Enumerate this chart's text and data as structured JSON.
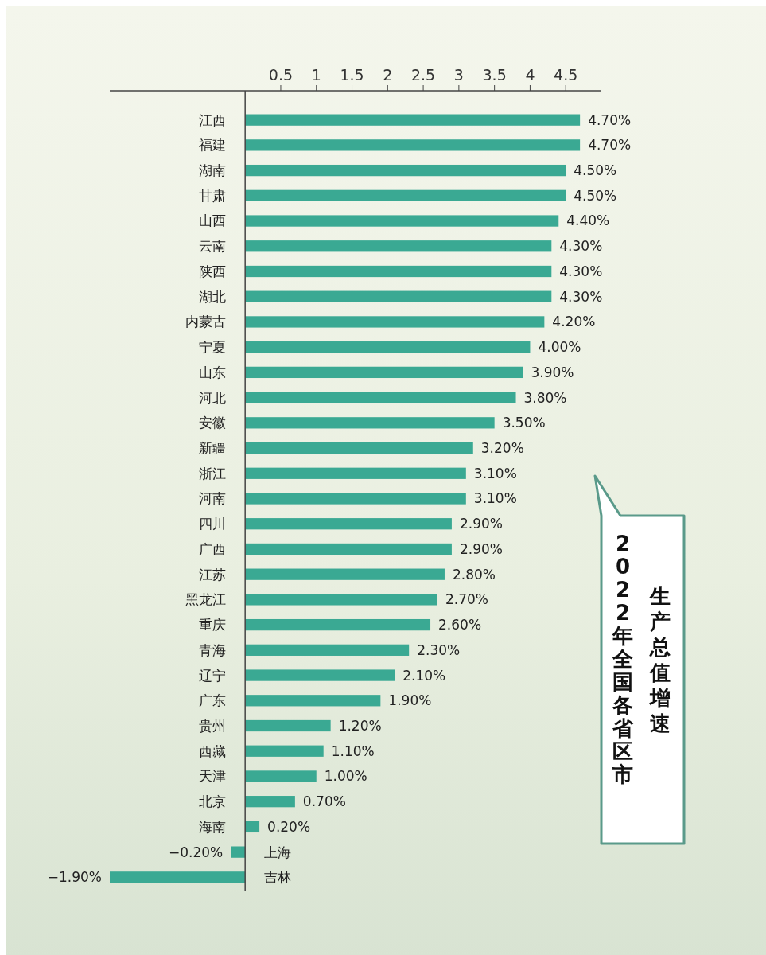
{
  "chart_data": {
    "type": "bar",
    "orientation": "horizontal",
    "title": "2022年全国各省区市",
    "subtitle": "生产总值增速",
    "categories": [
      "江西",
      "福建",
      "湖南",
      "甘肃",
      "山西",
      "云南",
      "陕西",
      "湖北",
      "内蒙古",
      "宁夏",
      "山东",
      "河北",
      "安徽",
      "新疆",
      "浙江",
      "河南",
      "四川",
      "广西",
      "江苏",
      "黑龙江",
      "重庆",
      "青海",
      "辽宁",
      "广东",
      "贵州",
      "西藏",
      "天津",
      "北京",
      "海南",
      "上海",
      "吉林"
    ],
    "values": [
      4.7,
      4.7,
      4.5,
      4.5,
      4.4,
      4.3,
      4.3,
      4.3,
      4.2,
      4.0,
      3.9,
      3.8,
      3.5,
      3.2,
      3.1,
      3.1,
      2.9,
      2.9,
      2.8,
      2.7,
      2.6,
      2.3,
      2.1,
      1.9,
      1.2,
      1.1,
      1.0,
      0.7,
      0.2,
      -0.2,
      -1.9
    ],
    "value_labels": [
      "4.70%",
      "4.70%",
      "4.50%",
      "4.50%",
      "4.40%",
      "4.30%",
      "4.30%",
      "4.30%",
      "4.20%",
      "4.00%",
      "3.90%",
      "3.80%",
      "3.50%",
      "3.20%",
      "3.10%",
      "3.10%",
      "2.90%",
      "2.90%",
      "2.80%",
      "2.70%",
      "2.60%",
      "2.30%",
      "2.10%",
      "1.90%",
      "1.20%",
      "1.10%",
      "1.00%",
      "0.70%",
      "0.20%",
      "−0.20%",
      "−1.90%"
    ],
    "color": "#3aa993",
    "xlim": [
      -1.9,
      5
    ],
    "xticks": [
      0.5,
      1,
      1.5,
      2,
      2.5,
      3,
      3.5,
      4,
      4.5
    ],
    "grid": false
  }
}
